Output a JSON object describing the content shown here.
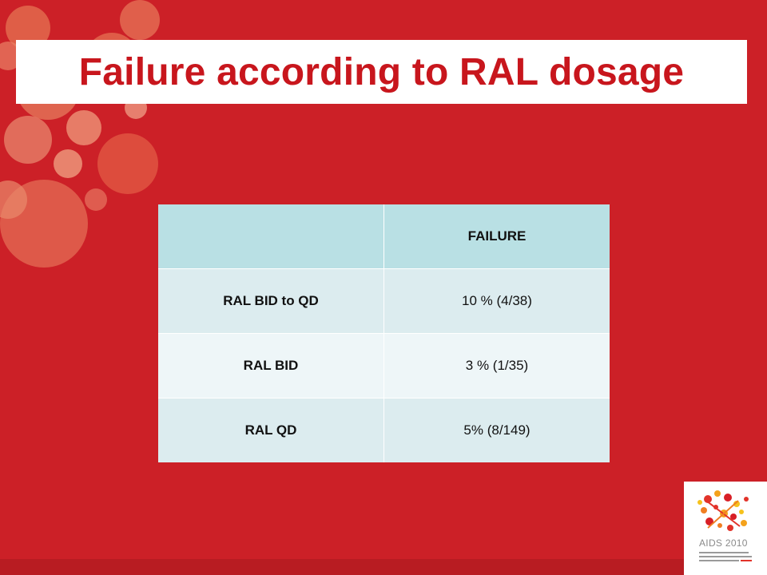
{
  "slide": {
    "title": "Failure according to RAL dosage",
    "background_color": "#cc2027",
    "title_color": "#c8161d"
  },
  "table": {
    "header": [
      "",
      "FAILURE"
    ],
    "rows": [
      {
        "label": "RAL BID to QD",
        "value": "10 % (4/38)"
      },
      {
        "label": "RAL BID",
        "value": "3 % (1/35)"
      },
      {
        "label": "RAL QD",
        "value": "5% (8/149)"
      }
    ]
  },
  "logo": {
    "text": "AIDS 2010"
  }
}
